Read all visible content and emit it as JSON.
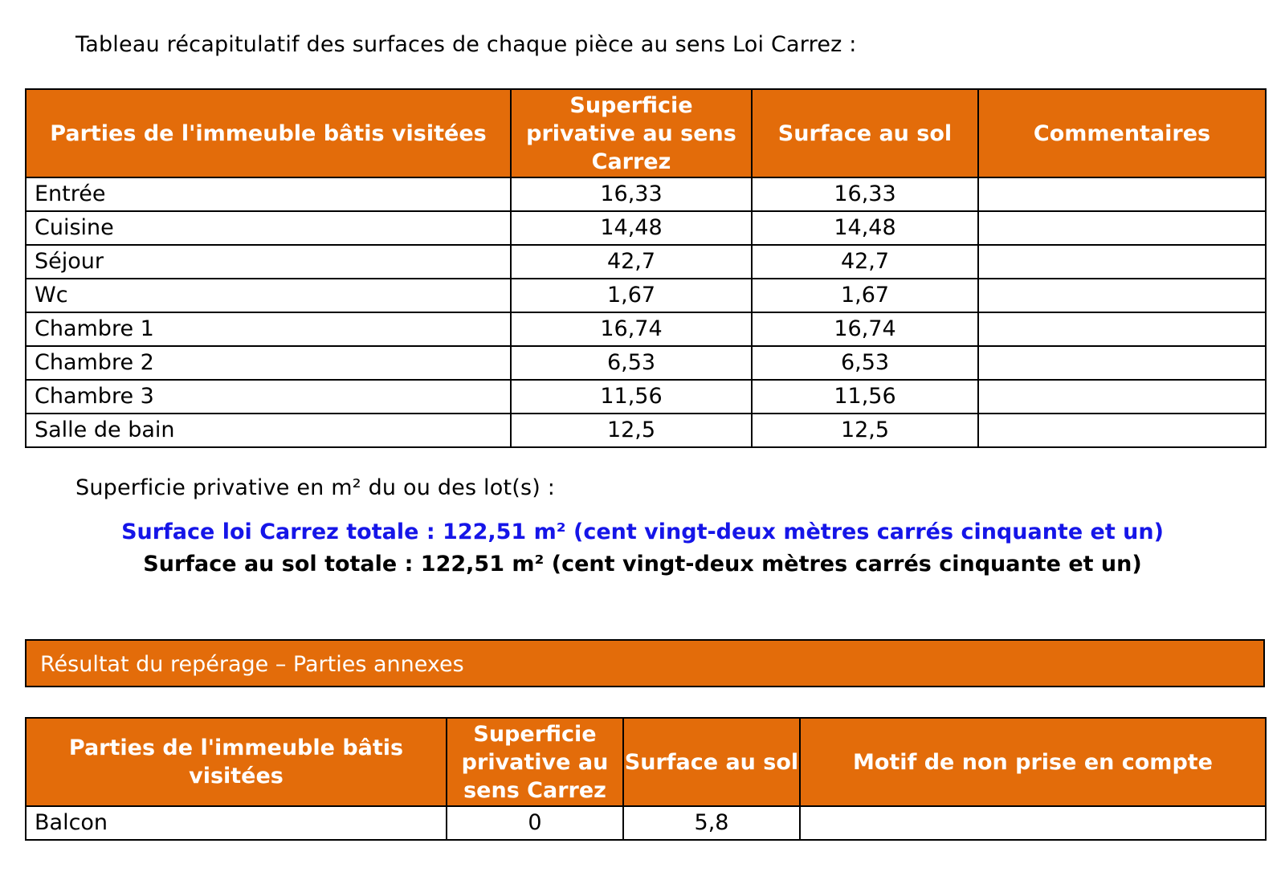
{
  "intro": "Tableau récapitulatif des surfaces de chaque pièce au sens Loi Carrez :",
  "main_table": {
    "headers": [
      "Parties de l'immeuble bâtis visitées",
      "Superficie privative au sens Carrez",
      "Surface au sol",
      "Commentaires"
    ],
    "rows": [
      {
        "part": "Entrée",
        "carrez": "16,33",
        "sol": "16,33",
        "comment": ""
      },
      {
        "part": "Cuisine",
        "carrez": "14,48",
        "sol": "14,48",
        "comment": ""
      },
      {
        "part": "Séjour",
        "carrez": "42,7",
        "sol": "42,7",
        "comment": ""
      },
      {
        "part": "Wc",
        "carrez": "1,67",
        "sol": "1,67",
        "comment": ""
      },
      {
        "part": "Chambre 1",
        "carrez": "16,74",
        "sol": "16,74",
        "comment": ""
      },
      {
        "part": "Chambre 2",
        "carrez": "6,53",
        "sol": "6,53",
        "comment": ""
      },
      {
        "part": "Chambre 3",
        "carrez": "11,56",
        "sol": "11,56",
        "comment": ""
      },
      {
        "part": "Salle de bain",
        "carrez": "12,5",
        "sol": "12,5",
        "comment": ""
      }
    ]
  },
  "lot_label": "Superficie privative en m² du ou des lot(s) :",
  "total_carrez": "Surface loi Carrez totale : 122,51 m² (cent vingt-deux mètres carrés cinquante et un)",
  "total_sol": "Surface au sol totale : 122,51 m² (cent vingt-deux mètres carrés cinquante et un)",
  "annex_section_title": "Résultat du repérage – Parties annexes",
  "annex_table": {
    "headers": [
      "Parties de l'immeuble bâtis visitées",
      "Superficie privative au sens Carrez",
      "Surface au sol",
      "Motif de non prise en compte"
    ],
    "rows": [
      {
        "part": "Balcon",
        "carrez": "0",
        "sol": "5,8",
        "motif": ""
      }
    ]
  },
  "colors": {
    "header_orange": "#e36c0a",
    "carrez_total_blue": "#1515e8"
  }
}
